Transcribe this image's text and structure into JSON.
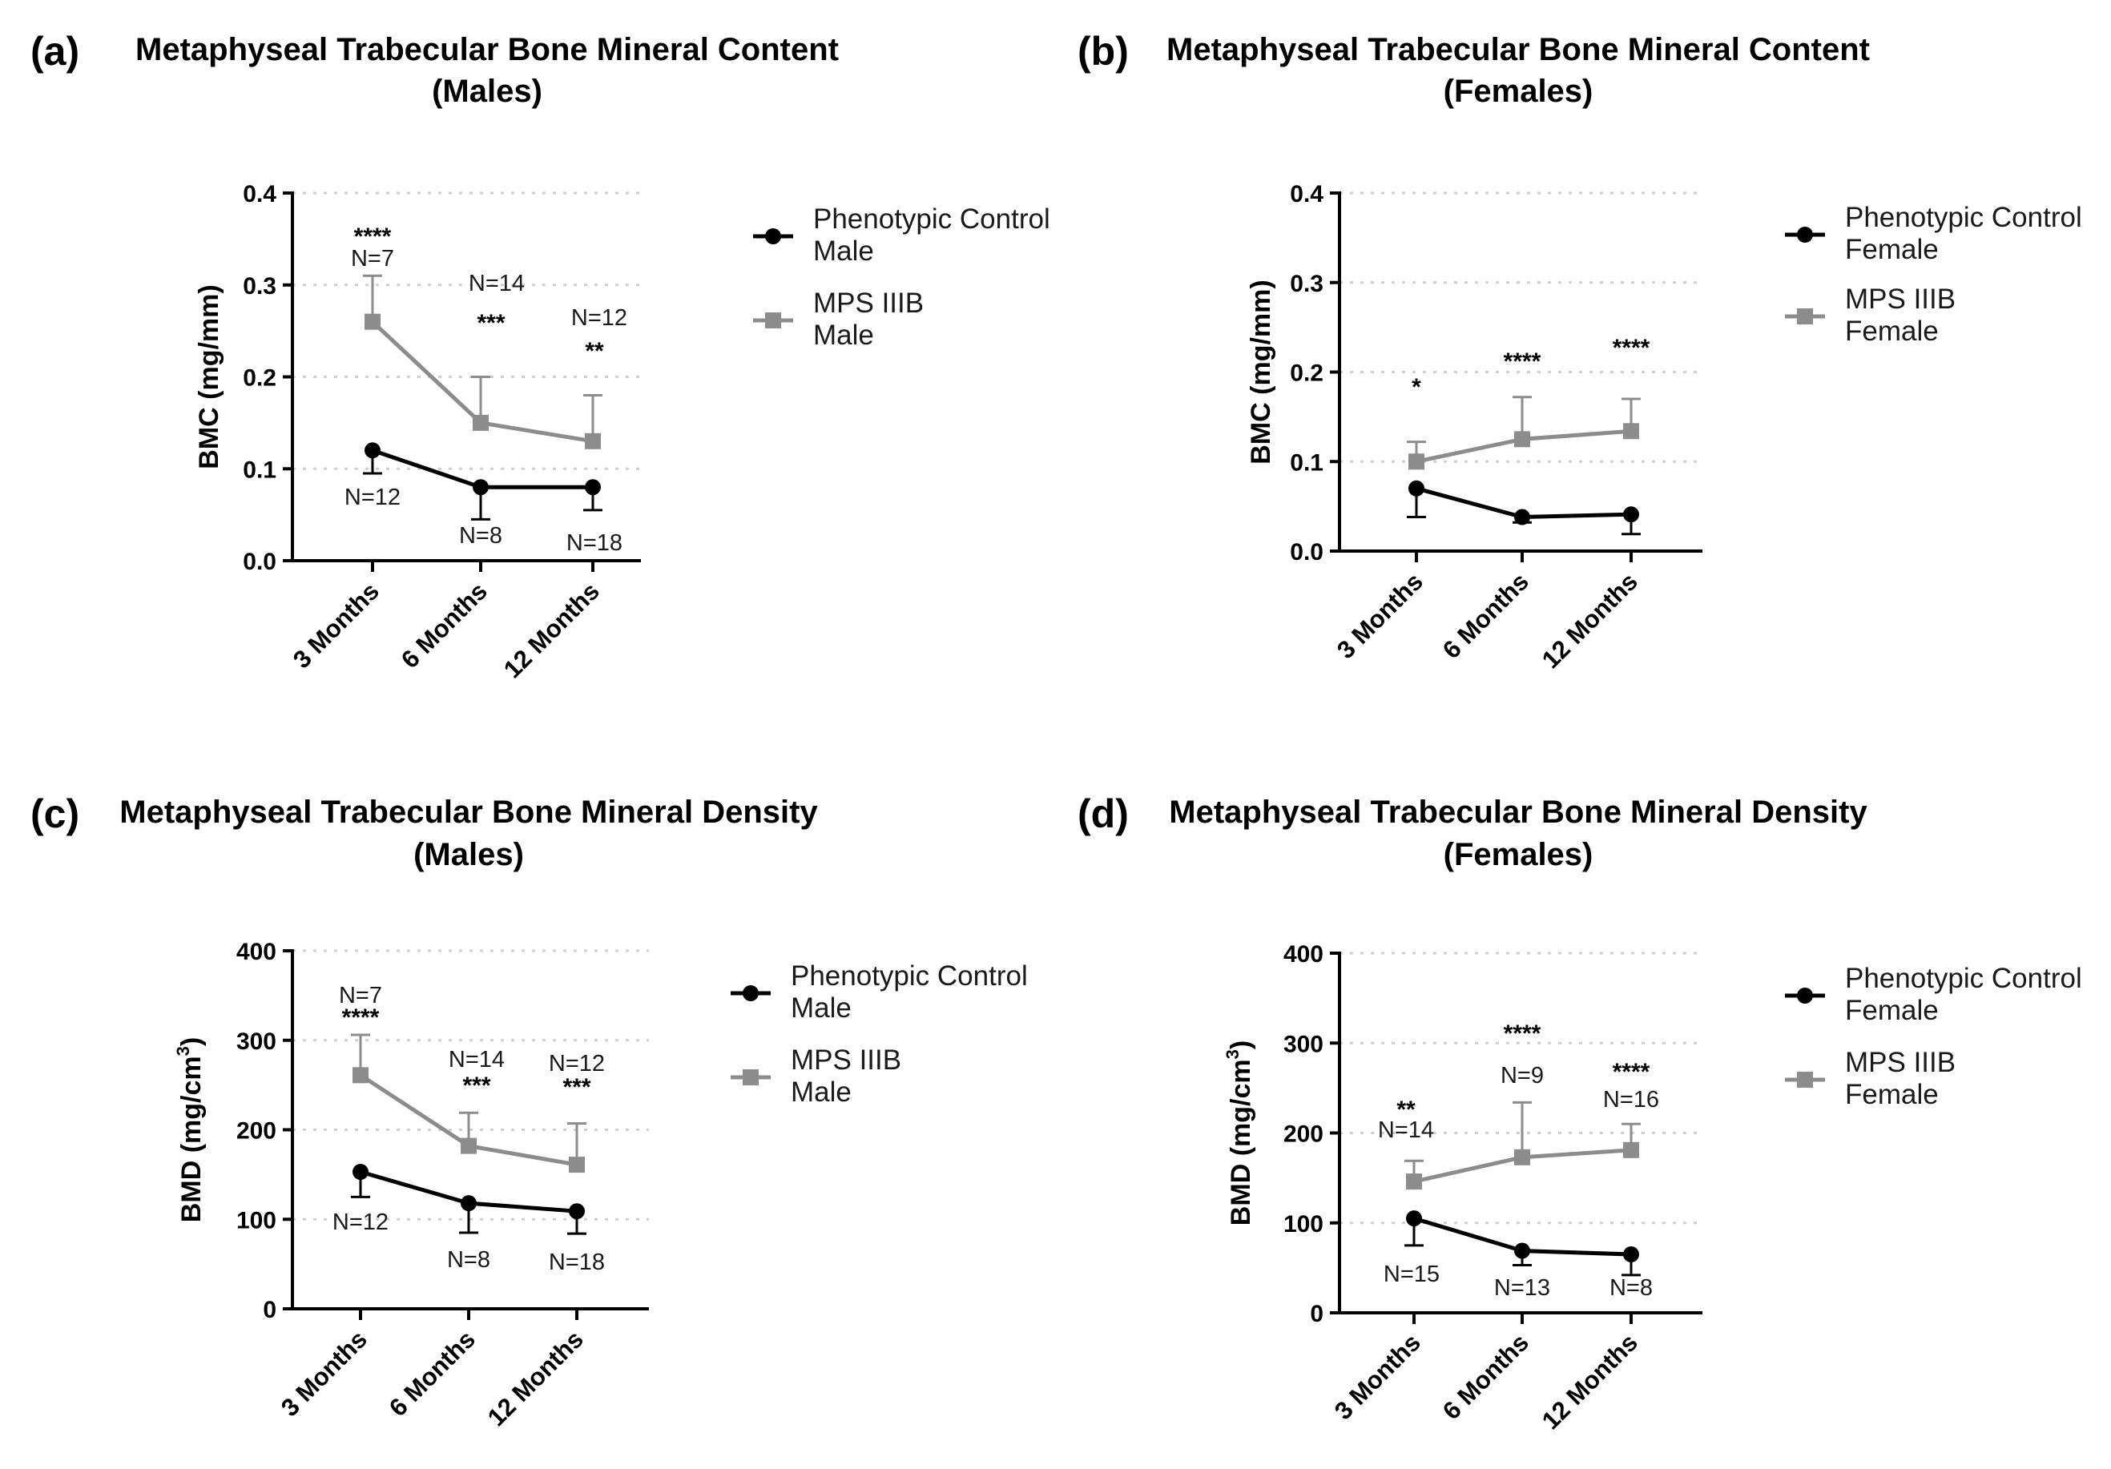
{
  "colors": {
    "control": "#000000",
    "mps": "#8c8c8c",
    "axis": "#000000",
    "grid": "#cfcfcf"
  },
  "chart_data": [
    {
      "type": "line",
      "panel_letter": "(a)",
      "title": [
        "Metaphyseal Trabecular Bone Mineral Content",
        "(Males)"
      ],
      "ylabel": "BMC (mg/mm)",
      "ylabel_sup": "",
      "ylabel_tail": "",
      "xlabel": "",
      "ylim": [
        0,
        0.4
      ],
      "yticks": [
        "0.0",
        "0.1",
        "0.2",
        "0.3",
        "0.4"
      ],
      "categories": [
        "3 Months",
        "6 Months",
        "12 Months"
      ],
      "series": [
        {
          "name": "Phenotypic Control Male",
          "legend": [
            "Phenotypic Control",
            "Male"
          ],
          "marker": "circle",
          "values": [
            0.12,
            0.08,
            0.08
          ],
          "error": [
            0.025,
            0.035,
            0.025
          ],
          "error_dir": "down",
          "n_labels": [
            "N=12",
            "N=8",
            "N=18"
          ]
        },
        {
          "name": "MPS IIIB Male",
          "legend": [
            "MPS IIIB",
            "Male"
          ],
          "marker": "square",
          "values": [
            0.26,
            0.15,
            0.13
          ],
          "error": [
            0.05,
            0.05,
            0.05
          ],
          "error_dir": "up",
          "n_labels": [
            "N=7",
            "N=14",
            "N=12"
          ]
        }
      ],
      "significance": [
        "****",
        "***",
        "**"
      ]
    },
    {
      "type": "line",
      "panel_letter": "(b)",
      "title": [
        "Metaphyseal Trabecular Bone Mineral Content",
        "(Females)"
      ],
      "ylabel": "BMC (mg/mm)",
      "ylabel_sup": "",
      "ylabel_tail": "",
      "xlabel": "",
      "ylim": [
        0,
        0.4
      ],
      "yticks": [
        "0.0",
        "0.1",
        "0.2",
        "0.3",
        "0.4"
      ],
      "categories": [
        "3 Months",
        "6 Months",
        "12 Months"
      ],
      "series": [
        {
          "name": "Phenotypic Control Female",
          "legend": [
            "Phenotypic Control",
            "Female"
          ],
          "marker": "circle",
          "values": [
            0.07,
            0.038,
            0.041
          ],
          "error": [
            0.032,
            0.006,
            0.022
          ],
          "error_dir": "down",
          "n_labels": []
        },
        {
          "name": "MPS IIIB Female",
          "legend": [
            "MPS IIIB",
            "Female"
          ],
          "marker": "square",
          "values": [
            0.1,
            0.125,
            0.134
          ],
          "error": [
            0.022,
            0.047,
            0.036
          ],
          "error_dir": "up",
          "n_labels": []
        }
      ],
      "significance": [
        "*",
        "****",
        "****"
      ]
    },
    {
      "type": "line",
      "panel_letter": "(c)",
      "title": [
        "Metaphyseal Trabecular Bone Mineral Density",
        "(Males)"
      ],
      "ylabel": "BMD (mg/cm",
      "ylabel_sup": "3",
      "ylabel_tail": ")",
      "xlabel": "",
      "ylim": [
        0,
        400
      ],
      "yticks": [
        "0",
        "100",
        "200",
        "300",
        "400"
      ],
      "categories": [
        "3 Months",
        "6 Months",
        "12 Months"
      ],
      "series": [
        {
          "name": "Phenotypic Control Male",
          "legend": [
            "Phenotypic Control",
            "Male"
          ],
          "marker": "circle",
          "values": [
            153,
            118,
            109
          ],
          "error": [
            28,
            33,
            25
          ],
          "error_dir": "down",
          "n_labels": [
            "N=12",
            "N=8",
            "N=18"
          ]
        },
        {
          "name": "MPS IIIB Male",
          "legend": [
            "MPS IIIB",
            "Male"
          ],
          "marker": "square",
          "values": [
            261,
            182,
            161
          ],
          "error": [
            45,
            37,
            46
          ],
          "error_dir": "up",
          "n_labels": [
            "N=7",
            "N=14",
            "N=12"
          ]
        }
      ],
      "significance": [
        "****",
        "***",
        "***"
      ]
    },
    {
      "type": "line",
      "panel_letter": "(d)",
      "title": [
        "Metaphyseal Trabecular Bone Mineral Density",
        "(Females)"
      ],
      "ylabel": "BMD (mg/cm",
      "ylabel_sup": "3",
      "ylabel_tail": ")",
      "xlabel": "",
      "ylim": [
        0,
        400
      ],
      "yticks": [
        "0",
        "100",
        "200",
        "300",
        "400"
      ],
      "categories": [
        "3 Months",
        "6 Months",
        "12 Months"
      ],
      "series": [
        {
          "name": "Phenotypic Control Female",
          "legend": [
            "Phenotypic Control",
            "Female"
          ],
          "marker": "circle",
          "values": [
            105,
            69,
            65
          ],
          "error": [
            30,
            16,
            23
          ],
          "error_dir": "down",
          "n_labels": [
            "N=15",
            "N=13",
            "N=8"
          ]
        },
        {
          "name": "MPS IIIB Female",
          "legend": [
            "MPS IIIB",
            "Female"
          ],
          "marker": "square",
          "values": [
            146,
            173,
            181
          ],
          "error": [
            23,
            61,
            29
          ],
          "error_dir": "up",
          "n_labels": [
            "N=14",
            "N=9",
            "N=16"
          ]
        }
      ],
      "significance": [
        "**",
        "****",
        "****"
      ]
    }
  ]
}
